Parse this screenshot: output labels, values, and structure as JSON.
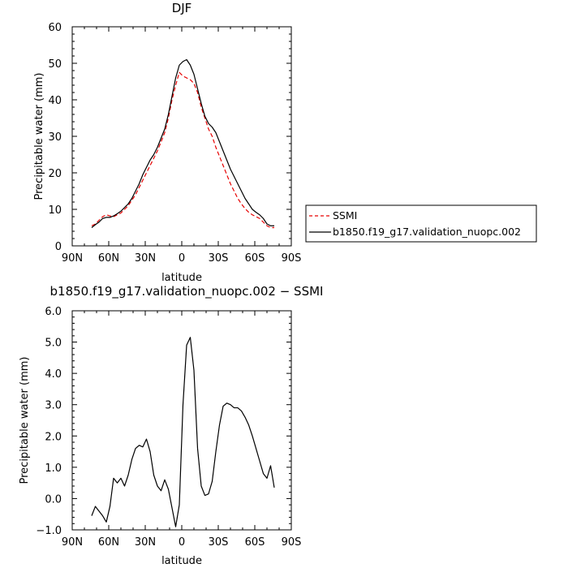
{
  "chart_data": [
    {
      "type": "line",
      "title": "DJF",
      "xlabel": "latitude",
      "ylabel": "Precipitable water (mm)",
      "xlim": [
        90,
        -90
      ],
      "ylim": [
        0,
        60
      ],
      "xticks": [
        90,
        60,
        30,
        0,
        -30,
        -60,
        -90
      ],
      "xtick_labels": [
        "90N",
        "60N",
        "30N",
        "0",
        "30S",
        "60S",
        "90S"
      ],
      "yticks": [
        0,
        10,
        20,
        30,
        40,
        50,
        60
      ],
      "ytick_labels": [
        "0",
        "10",
        "20",
        "30",
        "40",
        "50",
        "60"
      ],
      "grid": false,
      "legend_position": "right",
      "series": [
        {
          "name": "SSMI",
          "color": "#e60000",
          "dash": "dashed",
          "x": [
            74,
            71,
            68,
            65,
            62,
            59,
            56,
            53,
            50,
            47,
            44,
            41,
            38,
            35,
            32,
            29,
            26,
            23,
            20,
            17,
            14,
            11,
            8,
            5,
            2,
            -1,
            -4,
            -7,
            -10,
            -13,
            -16,
            -19,
            -22,
            -25,
            -28,
            -31,
            -34,
            -37,
            -40,
            -43,
            -46,
            -49,
            -52,
            -55,
            -58,
            -61,
            -64,
            -67,
            -70,
            -73,
            -76
          ],
          "y": [
            5.5,
            6.0,
            7.0,
            8.0,
            8.5,
            8.2,
            8.0,
            8.5,
            9.0,
            10.0,
            11.0,
            12.5,
            14.0,
            16.0,
            18.0,
            20.0,
            22.0,
            24.0,
            26.0,
            28.5,
            31.0,
            35.0,
            40.0,
            44.0,
            47.5,
            46.5,
            46.0,
            45.5,
            44.5,
            42.0,
            38.0,
            35.0,
            32.0,
            30.0,
            27.0,
            24.5,
            22.0,
            19.5,
            17.0,
            15.0,
            13.0,
            11.5,
            10.2,
            9.2,
            8.5,
            8.0,
            7.5,
            6.5,
            5.5,
            5.0,
            5.0
          ]
        },
        {
          "name": "b1850.f19_g17.validation_nuopc.002",
          "color": "#000000",
          "dash": "solid",
          "x": [
            74,
            71,
            68,
            65,
            62,
            59,
            56,
            53,
            50,
            47,
            44,
            41,
            38,
            35,
            32,
            29,
            26,
            23,
            20,
            17,
            14,
            11,
            8,
            5,
            2,
            -1,
            -4,
            -7,
            -10,
            -13,
            -16,
            -19,
            -22,
            -25,
            -28,
            -31,
            -34,
            -37,
            -40,
            -43,
            -46,
            -49,
            -52,
            -55,
            -58,
            -61,
            -64,
            -67,
            -70,
            -73,
            -76
          ],
          "y": [
            5.0,
            5.8,
            6.5,
            7.5,
            7.8,
            7.8,
            8.2,
            8.8,
            9.5,
            10.5,
            11.5,
            13.0,
            15.0,
            17.0,
            19.5,
            21.5,
            23.5,
            25.0,
            27.0,
            29.5,
            32.0,
            36.0,
            41.0,
            46.0,
            49.5,
            50.5,
            51.0,
            49.5,
            47.0,
            43.0,
            39.0,
            35.5,
            33.5,
            32.5,
            31.0,
            28.5,
            26.0,
            23.5,
            21.0,
            19.0,
            17.0,
            15.0,
            13.0,
            11.5,
            10.0,
            9.2,
            8.5,
            7.5,
            6.0,
            5.5,
            5.5
          ]
        }
      ]
    },
    {
      "type": "line",
      "title": "b1850.f19_g17.validation_nuopc.002 − SSMI",
      "xlabel": "latitude",
      "ylabel": "Precipitable water (mm)",
      "xlim": [
        90,
        -90
      ],
      "ylim": [
        -1.0,
        6.0
      ],
      "xticks": [
        90,
        60,
        30,
        0,
        -30,
        -60,
        -90
      ],
      "xtick_labels": [
        "90N",
        "60N",
        "30N",
        "0",
        "30S",
        "60S",
        "90S"
      ],
      "yticks": [
        -1.0,
        0.0,
        1.0,
        2.0,
        3.0,
        4.0,
        5.0,
        6.0
      ],
      "ytick_labels": [
        "−1.0",
        "0.0",
        "1.0",
        "2.0",
        "3.0",
        "4.0",
        "5.0",
        "6.0"
      ],
      "grid": false,
      "series": [
        {
          "color": "#000000",
          "dash": "solid",
          "x": [
            74,
            71,
            68,
            65,
            62,
            59,
            56,
            53,
            50,
            47,
            44,
            41,
            38,
            35,
            32,
            29,
            26,
            23,
            20,
            17,
            14,
            11,
            8,
            5,
            2,
            -1,
            -4,
            -7,
            -10,
            -13,
            -16,
            -19,
            -22,
            -25,
            -28,
            -31,
            -34,
            -37,
            -40,
            -43,
            -46,
            -49,
            -52,
            -55,
            -58,
            -61,
            -64,
            -67,
            -70,
            -73,
            -76
          ],
          "y": [
            -0.55,
            -0.25,
            -0.4,
            -0.55,
            -0.75,
            -0.25,
            0.65,
            0.5,
            0.65,
            0.4,
            0.75,
            1.25,
            1.6,
            1.7,
            1.65,
            1.9,
            1.5,
            0.75,
            0.4,
            0.25,
            0.6,
            0.3,
            -0.3,
            -0.9,
            -0.2,
            3.0,
            4.9,
            5.15,
            4.1,
            1.6,
            0.4,
            0.1,
            0.15,
            0.55,
            1.5,
            2.35,
            2.95,
            3.05,
            3.0,
            2.9,
            2.9,
            2.8,
            2.6,
            2.35,
            2.0,
            1.6,
            1.2,
            0.8,
            0.65,
            1.05,
            0.35
          ]
        }
      ]
    }
  ]
}
